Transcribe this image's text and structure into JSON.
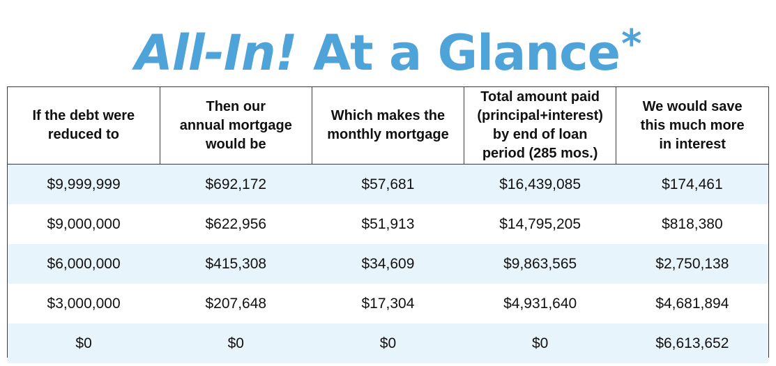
{
  "title": {
    "brand": "All-In!",
    "rest": "At a Glance",
    "asterisk": "*",
    "color": "#4ea3d8"
  },
  "table": {
    "headers": [
      "If the debt were\nreduced to",
      "Then our\nannual mortgage\nwould be",
      "Which makes the\nmonthly mortgage",
      "Total amount paid\n(principal+interest)\nby end of loan\nperiod (285 mos.)",
      "We would save\nthis much more\nin interest"
    ],
    "rows": [
      [
        "$9,999,999",
        "$692,172",
        "$57,681",
        "$16,439,085",
        "$174,461"
      ],
      [
        "$9,000,000",
        "$622,956",
        "$51,913",
        "$14,795,205",
        "$818,380"
      ],
      [
        "$6,000,000",
        "$415,308",
        "$34,609",
        "$9,863,565",
        "$2,750,138"
      ],
      [
        "$3,000,000",
        "$207,648",
        "$17,304",
        "$4,931,640",
        "$4,681,894"
      ],
      [
        "$0",
        "$0",
        "$0",
        "$0",
        "$6,613,652"
      ]
    ],
    "stripe_color": "#e8f4fb"
  }
}
